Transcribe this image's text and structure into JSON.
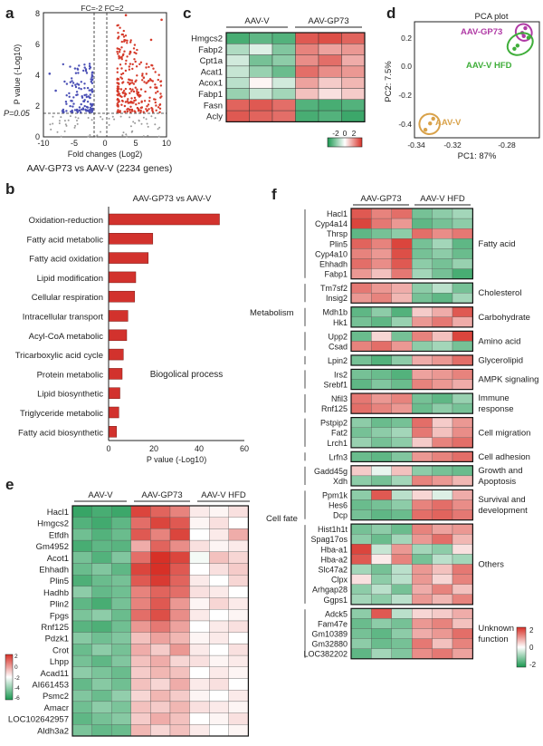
{
  "palette": {
    "red": "#d73027",
    "white": "#ffffff",
    "green": "#1a9850",
    "volcano_up": "#d53a2a",
    "volcano_down": "#4a4fb5",
    "bar": "#d2322d",
    "pca_gp73": "#b03aa5",
    "pca_hfd": "#3fae3a",
    "pca_v": "#d9a24a"
  },
  "panel_a": {
    "letter": "a",
    "fc_label": "FC=-2 FC=2",
    "ylabel": "P value (-Log10)",
    "xlabel": "Fold changes (Log2)",
    "p_label": "P=0.05",
    "caption": "AAV-GP73 vs AAV-V (2234 genes)",
    "x_ticks": [
      "-10",
      "-5",
      "0",
      "5",
      "10"
    ],
    "y_ticks": [
      "0",
      "2",
      "4",
      "6",
      "8"
    ]
  },
  "panel_b": {
    "letter": "b",
    "title": "AAV-GP73 vs AAV-V",
    "xlabel": "P value (-Log10)",
    "annotation": "Biogolical process",
    "x_ticks": [
      "0",
      "20",
      "40",
      "60"
    ]
  },
  "panel_c": {
    "letter": "c",
    "groups": [
      "AAV-V",
      "AAV-GP73"
    ],
    "genes": [
      "Hmgcs2",
      "Fabp2",
      "Cpt1a",
      "Acat1",
      "Acox1",
      "Fabp1",
      "Fasn",
      "Acly"
    ],
    "legend_ticks": [
      "-2",
      "0",
      "2"
    ]
  },
  "panel_d": {
    "letter": "d",
    "title": "PCA plot",
    "xlabel": "PC1: 87%",
    "ylabel": "PC2: 7.5%",
    "groups": [
      "AAV-GP73",
      "AAV-V HFD",
      "AAV-V"
    ],
    "x_ticks": [
      "-0.34",
      "-0.32",
      "-0.28"
    ],
    "y_ticks": [
      "0.2",
      "0.0",
      "-0.2",
      "-0.4"
    ]
  },
  "panel_e": {
    "letter": "e",
    "groups": [
      "AAV-V",
      "AAV-GP73",
      "AAV-V HFD"
    ],
    "genes": [
      "Hacl1",
      "Hmgcs2",
      "Etfdh",
      "Gm4952",
      "Acot1",
      "Ehhadh",
      "Plin5",
      "Hadhb",
      "Plin2",
      "Fpgs",
      "Rnf125",
      "Pdzk1",
      "Crot",
      "Lhpp",
      "Acad11",
      "AI661453",
      "Psmc2",
      "Amacr",
      "LOC102642957",
      "Aldh3a2"
    ],
    "legend_ticks": [
      "2",
      "0",
      "-2",
      "-4",
      "-6"
    ]
  },
  "panel_f": {
    "letter": "f",
    "groups": [
      "AAV-GP73",
      "AAV-V HFD"
    ],
    "categories": [
      {
        "label": "Fatty acid",
        "genes": [
          "Hacl1",
          "Cyp4a14",
          "Thrsp",
          "Plin5",
          "Cyp4a10",
          "Ehhadh",
          "Fabp1"
        ]
      },
      {
        "label": "Cholesterol",
        "genes": [
          "Tm7sf2",
          "Insig2"
        ]
      },
      {
        "label": "Carbohydrate",
        "genes": [
          "Mdh1b",
          "Hk1"
        ]
      },
      {
        "label": "Amino acid",
        "genes": [
          "Upp2",
          "Csad"
        ]
      },
      {
        "label": "Glycerolipid",
        "genes": [
          "Lpin2"
        ]
      },
      {
        "label": "AMPK signaling",
        "genes": [
          "Irs2",
          "Srebf1"
        ]
      },
      {
        "label": "Immune response",
        "genes": [
          "Nfil3",
          "Rnf125"
        ]
      },
      {
        "label": "Cell migration",
        "genes": [
          "Pstpip2",
          "Fat2",
          "Lrch1"
        ]
      },
      {
        "label": "Cell adhesion",
        "genes": [
          "Lrfn3"
        ]
      },
      {
        "label": "Growth and Apoptosis",
        "genes": [
          "Gadd45g",
          "Xdh"
        ]
      },
      {
        "label": "Survival and development",
        "genes": [
          "Ppm1k",
          "Hes6",
          "Dcp"
        ]
      },
      {
        "label": "Others",
        "genes": [
          "Hist1h1t",
          "Spag17os",
          "Hba-a1",
          "Hba-a2",
          "Slc47a2",
          "Clpx",
          "Arhgap28",
          "Ggps1"
        ]
      },
      {
        "label": "Unknown function",
        "genes": [
          "Adck5",
          "Fam47e",
          "Gm10389",
          "Gm32880",
          "LOC382202"
        ]
      }
    ],
    "metabolism_label": "Metabolism",
    "cellfate_label": "Cell fate",
    "legend_ticks": [
      "2",
      "0",
      "-2"
    ]
  },
  "chart_data": [
    {
      "type": "bar",
      "title": "AAV-GP73 vs AAV-V",
      "xlabel": "P value (-Log10)",
      "categories": [
        "Oxidation-reduction",
        "Fatty acid metabolic",
        "Fatty acid oxidation",
        "Lipid modification",
        "Cellular respiration",
        "Intracellular transport",
        "Acyl-CoA metabolic",
        "Tricarboxylic acid cycle",
        "Protein metabolic",
        "Lipid biosynthetic",
        "Triglyceride metabolic",
        "Fatty acid biosynthetic"
      ],
      "values": [
        49,
        19.5,
        17.5,
        12,
        11.5,
        8.5,
        8,
        6.5,
        6,
        5,
        4.5,
        3.5
      ],
      "xlim": [
        0,
        60
      ]
    },
    {
      "type": "heatmap",
      "rows": [
        "Hmgcs2",
        "Fabp2",
        "Cpt1a",
        "Acat1",
        "Acox1",
        "Fabp1",
        "Fasn",
        "Acly"
      ],
      "columns": [
        "AAV-V",
        "AAV-V",
        "AAV-V",
        "AAV-GP73",
        "AAV-GP73",
        "AAV-GP73"
      ],
      "values": [
        [
          -1.6,
          -1.4,
          -1.5,
          1.6,
          1.7,
          1.5
        ],
        [
          -0.7,
          -0.3,
          -1.1,
          1.2,
          0.9,
          1.0
        ],
        [
          -0.4,
          -1.2,
          -1.0,
          1.1,
          1.4,
          0.8
        ],
        [
          -0.5,
          -0.9,
          -1.3,
          1.4,
          1.1,
          1.0
        ],
        [
          -0.6,
          0.1,
          -0.4,
          0.9,
          0.5,
          0.7
        ],
        [
          -0.9,
          -0.5,
          -0.8,
          0.6,
          0.3,
          0.5
        ],
        [
          1.5,
          1.6,
          1.4,
          -1.5,
          -1.6,
          -1.5
        ],
        [
          1.6,
          1.5,
          1.4,
          -1.6,
          -1.5,
          -1.7
        ]
      ],
      "vlim": [
        -2,
        2
      ]
    },
    {
      "type": "scatter",
      "title": "PCA plot",
      "xlabel": "PC1: 87%",
      "ylabel": "PC2: 7.5%",
      "series": [
        {
          "name": "AAV-GP73",
          "x": [
            -0.274,
            -0.276,
            -0.275
          ],
          "y": [
            0.24,
            0.21,
            0.19
          ]
        },
        {
          "name": "AAV-V HFD",
          "x": [
            -0.281,
            -0.279,
            -0.272
          ],
          "y": [
            0.11,
            0.13,
            0.18
          ]
        },
        {
          "name": "AAV-V",
          "x": [
            -0.338,
            -0.335,
            -0.333
          ],
          "y": [
            -0.4,
            -0.36,
            -0.33
          ]
        }
      ],
      "xlim": [
        -0.345,
        -0.265
      ],
      "ylim": [
        -0.45,
        0.28
      ]
    },
    {
      "type": "heatmap",
      "rows": [
        "Hacl1",
        "Hmgcs2",
        "Etfdh",
        "Gm4952",
        "Acot1",
        "Ehhadh",
        "Plin5",
        "Hadhb",
        "Plin2",
        "Fpgs",
        "Rnf125",
        "Pdzk1",
        "Crot",
        "Lhpp",
        "Acad11",
        "AI661453",
        "Psmc2",
        "Amacr",
        "LOC102642957",
        "Aldh3a2"
      ],
      "columns": [
        "AAV-V",
        "AAV-V",
        "AAV-V",
        "AAV-GP73",
        "AAV-GP73",
        "AAV-GP73",
        "AAV-V HFD",
        "AAV-V HFD",
        "AAV-V HFD"
      ],
      "values": [
        [
          -3.5,
          -3.2,
          -3.4,
          1.8,
          1.5,
          1.2,
          0.2,
          0.1,
          0.3
        ],
        [
          -3.0,
          -3.3,
          -2.8,
          1.4,
          1.8,
          1.6,
          0.1,
          0.3,
          0.0
        ],
        [
          -2.5,
          -3.0,
          -2.6,
          1.6,
          1.2,
          1.8,
          0.0,
          0.2,
          0.8
        ],
        [
          -3.2,
          -2.8,
          -2.9,
          0.8,
          1.5,
          1.1,
          0.3,
          0.1,
          0.2
        ],
        [
          -2.4,
          -3.0,
          -2.2,
          1.4,
          2.0,
          1.8,
          -0.2,
          0.6,
          0.4
        ],
        [
          -2.6,
          -2.2,
          -2.8,
          1.8,
          2.0,
          1.6,
          0.0,
          0.3,
          0.5
        ],
        [
          -3.1,
          -2.6,
          -2.4,
          1.6,
          1.9,
          1.5,
          0.2,
          0.0,
          0.4
        ],
        [
          -2.0,
          -2.7,
          -2.5,
          1.2,
          1.5,
          1.4,
          0.3,
          0.2,
          0.0
        ],
        [
          -2.8,
          -3.2,
          -2.4,
          1.2,
          1.6,
          1.0,
          0.1,
          0.4,
          0.2
        ],
        [
          -2.3,
          -2.0,
          -2.6,
          1.4,
          1.7,
          1.1,
          0.2,
          0.0,
          0.1
        ],
        [
          -2.9,
          -3.1,
          -2.5,
          1.0,
          1.3,
          0.9,
          0.0,
          0.2,
          0.3
        ],
        [
          -2.1,
          -2.5,
          -2.2,
          0.6,
          0.9,
          0.7,
          0.1,
          0.2,
          0.0
        ],
        [
          -2.6,
          -2.0,
          -2.4,
          0.8,
          0.5,
          1.0,
          0.2,
          0.0,
          0.3
        ],
        [
          -2.4,
          -2.8,
          -2.2,
          0.6,
          0.8,
          0.4,
          0.3,
          0.1,
          0.2
        ],
        [
          -2.0,
          -2.3,
          -2.6,
          0.5,
          0.7,
          0.6,
          0.0,
          0.2,
          0.1
        ],
        [
          -2.7,
          -2.1,
          -2.5,
          0.6,
          0.4,
          0.8,
          0.2,
          0.3,
          0.0
        ],
        [
          -2.2,
          -2.6,
          -1.9,
          0.4,
          0.7,
          0.5,
          0.1,
          0.0,
          0.2
        ],
        [
          -2.5,
          -2.0,
          -2.3,
          0.6,
          0.5,
          0.7,
          0.3,
          0.2,
          0.1
        ],
        [
          -2.8,
          -2.4,
          -2.1,
          0.5,
          0.8,
          0.6,
          0.0,
          0.1,
          0.3
        ],
        [
          -2.3,
          -2.7,
          -2.6,
          0.7,
          0.4,
          0.6,
          0.2,
          0.0,
          0.1
        ]
      ],
      "vlim": [
        -6,
        2
      ]
    },
    {
      "type": "heatmap",
      "rows": [
        "Hacl1",
        "Cyp4a14",
        "Thrsp",
        "Plin5",
        "Cyp4a10",
        "Ehhadh",
        "Fabp1",
        "Tm7sf2",
        "Insig2",
        "Mdh1b",
        "Hk1",
        "Upp2",
        "Csad",
        "Lpin2",
        "Irs2",
        "Srebf1",
        "Nfil3",
        "Rnf125",
        "Pstpip2",
        "Fat2",
        "Lrch1",
        "Lrfn3",
        "Gadd45g",
        "Xdh",
        "Ppm1k",
        "Hes6",
        "Dcp",
        "Hist1h1t",
        "Spag17os",
        "Hba-a1",
        "Hba-a2",
        "Slc47a2",
        "Clpx",
        "Arhgap28",
        "Ggps1",
        "Adck5",
        "Fam47e",
        "Gm10389",
        "Gm32880",
        "LOC382202"
      ],
      "columns": [
        "AAV-GP73",
        "AAV-GP73",
        "AAV-GP73",
        "AAV-V HFD",
        "AAV-V HFD",
        "AAV-V HFD"
      ],
      "values": [
        [
          1.6,
          1.2,
          1.4,
          -1.2,
          -1.0,
          -0.8
        ],
        [
          1.8,
          1.3,
          1.0,
          -1.4,
          -1.2,
          -1.0
        ],
        [
          -1.4,
          -1.2,
          -1.0,
          1.4,
          1.1,
          1.3
        ],
        [
          1.5,
          1.2,
          1.8,
          -1.2,
          -0.8,
          -1.4
        ],
        [
          1.2,
          1.0,
          1.7,
          -1.2,
          -1.0,
          -1.3
        ],
        [
          1.4,
          1.1,
          1.6,
          -1.0,
          -1.2,
          -0.9
        ],
        [
          1.0,
          0.6,
          1.3,
          -0.8,
          -1.2,
          -1.6
        ],
        [
          1.3,
          1.0,
          0.8,
          -1.0,
          -0.6,
          -1.2
        ],
        [
          1.0,
          1.2,
          0.7,
          -1.2,
          -1.4,
          -0.8
        ],
        [
          -1.4,
          -1.0,
          -1.5,
          0.5,
          0.8,
          1.6
        ],
        [
          -1.2,
          -1.4,
          -0.9,
          1.0,
          1.3,
          0.8
        ],
        [
          -1.3,
          0.4,
          -1.2,
          1.2,
          0.6,
          1.8
        ],
        [
          1.2,
          1.4,
          1.0,
          -1.0,
          -0.8,
          -1.2
        ],
        [
          -1.2,
          -1.5,
          -1.0,
          0.8,
          1.0,
          1.4
        ],
        [
          -1.2,
          -1.3,
          -1.5,
          0.9,
          1.0,
          1.2
        ],
        [
          -1.4,
          -1.1,
          -1.3,
          1.2,
          1.0,
          0.8
        ],
        [
          1.3,
          1.0,
          1.2,
          -1.2,
          -1.4,
          -0.9
        ],
        [
          1.4,
          1.2,
          1.0,
          -1.3,
          -1.0,
          -1.2
        ],
        [
          -1.0,
          -1.3,
          -1.2,
          1.4,
          0.5,
          1.0
        ],
        [
          -1.2,
          -1.0,
          -0.8,
          1.3,
          0.6,
          1.1
        ],
        [
          -0.9,
          -1.2,
          -1.0,
          0.5,
          1.2,
          1.4
        ],
        [
          -1.3,
          -1.4,
          -1.1,
          1.0,
          1.2,
          1.4
        ],
        [
          0.5,
          -0.2,
          0.6,
          -1.0,
          -1.2,
          -1.3
        ],
        [
          -1.0,
          -1.2,
          -0.8,
          1.2,
          1.0,
          0.7
        ],
        [
          -1.0,
          1.6,
          -0.6,
          0.4,
          -0.3,
          0.8
        ],
        [
          -1.3,
          -1.2,
          -1.0,
          1.2,
          1.4,
          1.1
        ],
        [
          -1.2,
          -1.4,
          -1.3,
          1.4,
          1.5,
          1.3
        ],
        [
          -1.2,
          -1.0,
          -1.3,
          1.2,
          0.9,
          1.0
        ],
        [
          -1.0,
          -1.3,
          -0.8,
          1.0,
          1.4,
          0.7
        ],
        [
          1.8,
          -0.5,
          1.0,
          -0.8,
          -1.0,
          0.3
        ],
        [
          1.6,
          0.2,
          1.2,
          -1.2,
          -0.6,
          -0.8
        ],
        [
          -0.8,
          -1.2,
          -0.6,
          1.0,
          0.6,
          1.3
        ],
        [
          0.3,
          -1.0,
          -0.6,
          1.0,
          0.4,
          1.2
        ],
        [
          -1.0,
          -0.6,
          -1.2,
          0.8,
          1.2,
          0.6
        ],
        [
          -0.8,
          -1.0,
          -0.6,
          1.0,
          0.7,
          1.2
        ],
        [
          -1.0,
          1.6,
          -0.6,
          0.4,
          0.5,
          0.8
        ],
        [
          -1.3,
          -1.0,
          -1.2,
          1.0,
          1.2,
          0.6
        ],
        [
          -1.2,
          -1.4,
          -1.0,
          0.8,
          1.0,
          1.4
        ],
        [
          -1.0,
          -1.3,
          -1.2,
          1.3,
          0.6,
          1.2
        ],
        [
          -1.4,
          -0.8,
          -1.1,
          1.1,
          1.3,
          0.9
        ]
      ],
      "vlim": [
        -2,
        2
      ]
    },
    {
      "type": "scatter",
      "title": "",
      "xlabel": "Fold changes (Log2)",
      "ylabel": "P value (-Log10)",
      "xlim": [
        -10,
        10
      ],
      "ylim": [
        0,
        8
      ],
      "series": []
    }
  ]
}
